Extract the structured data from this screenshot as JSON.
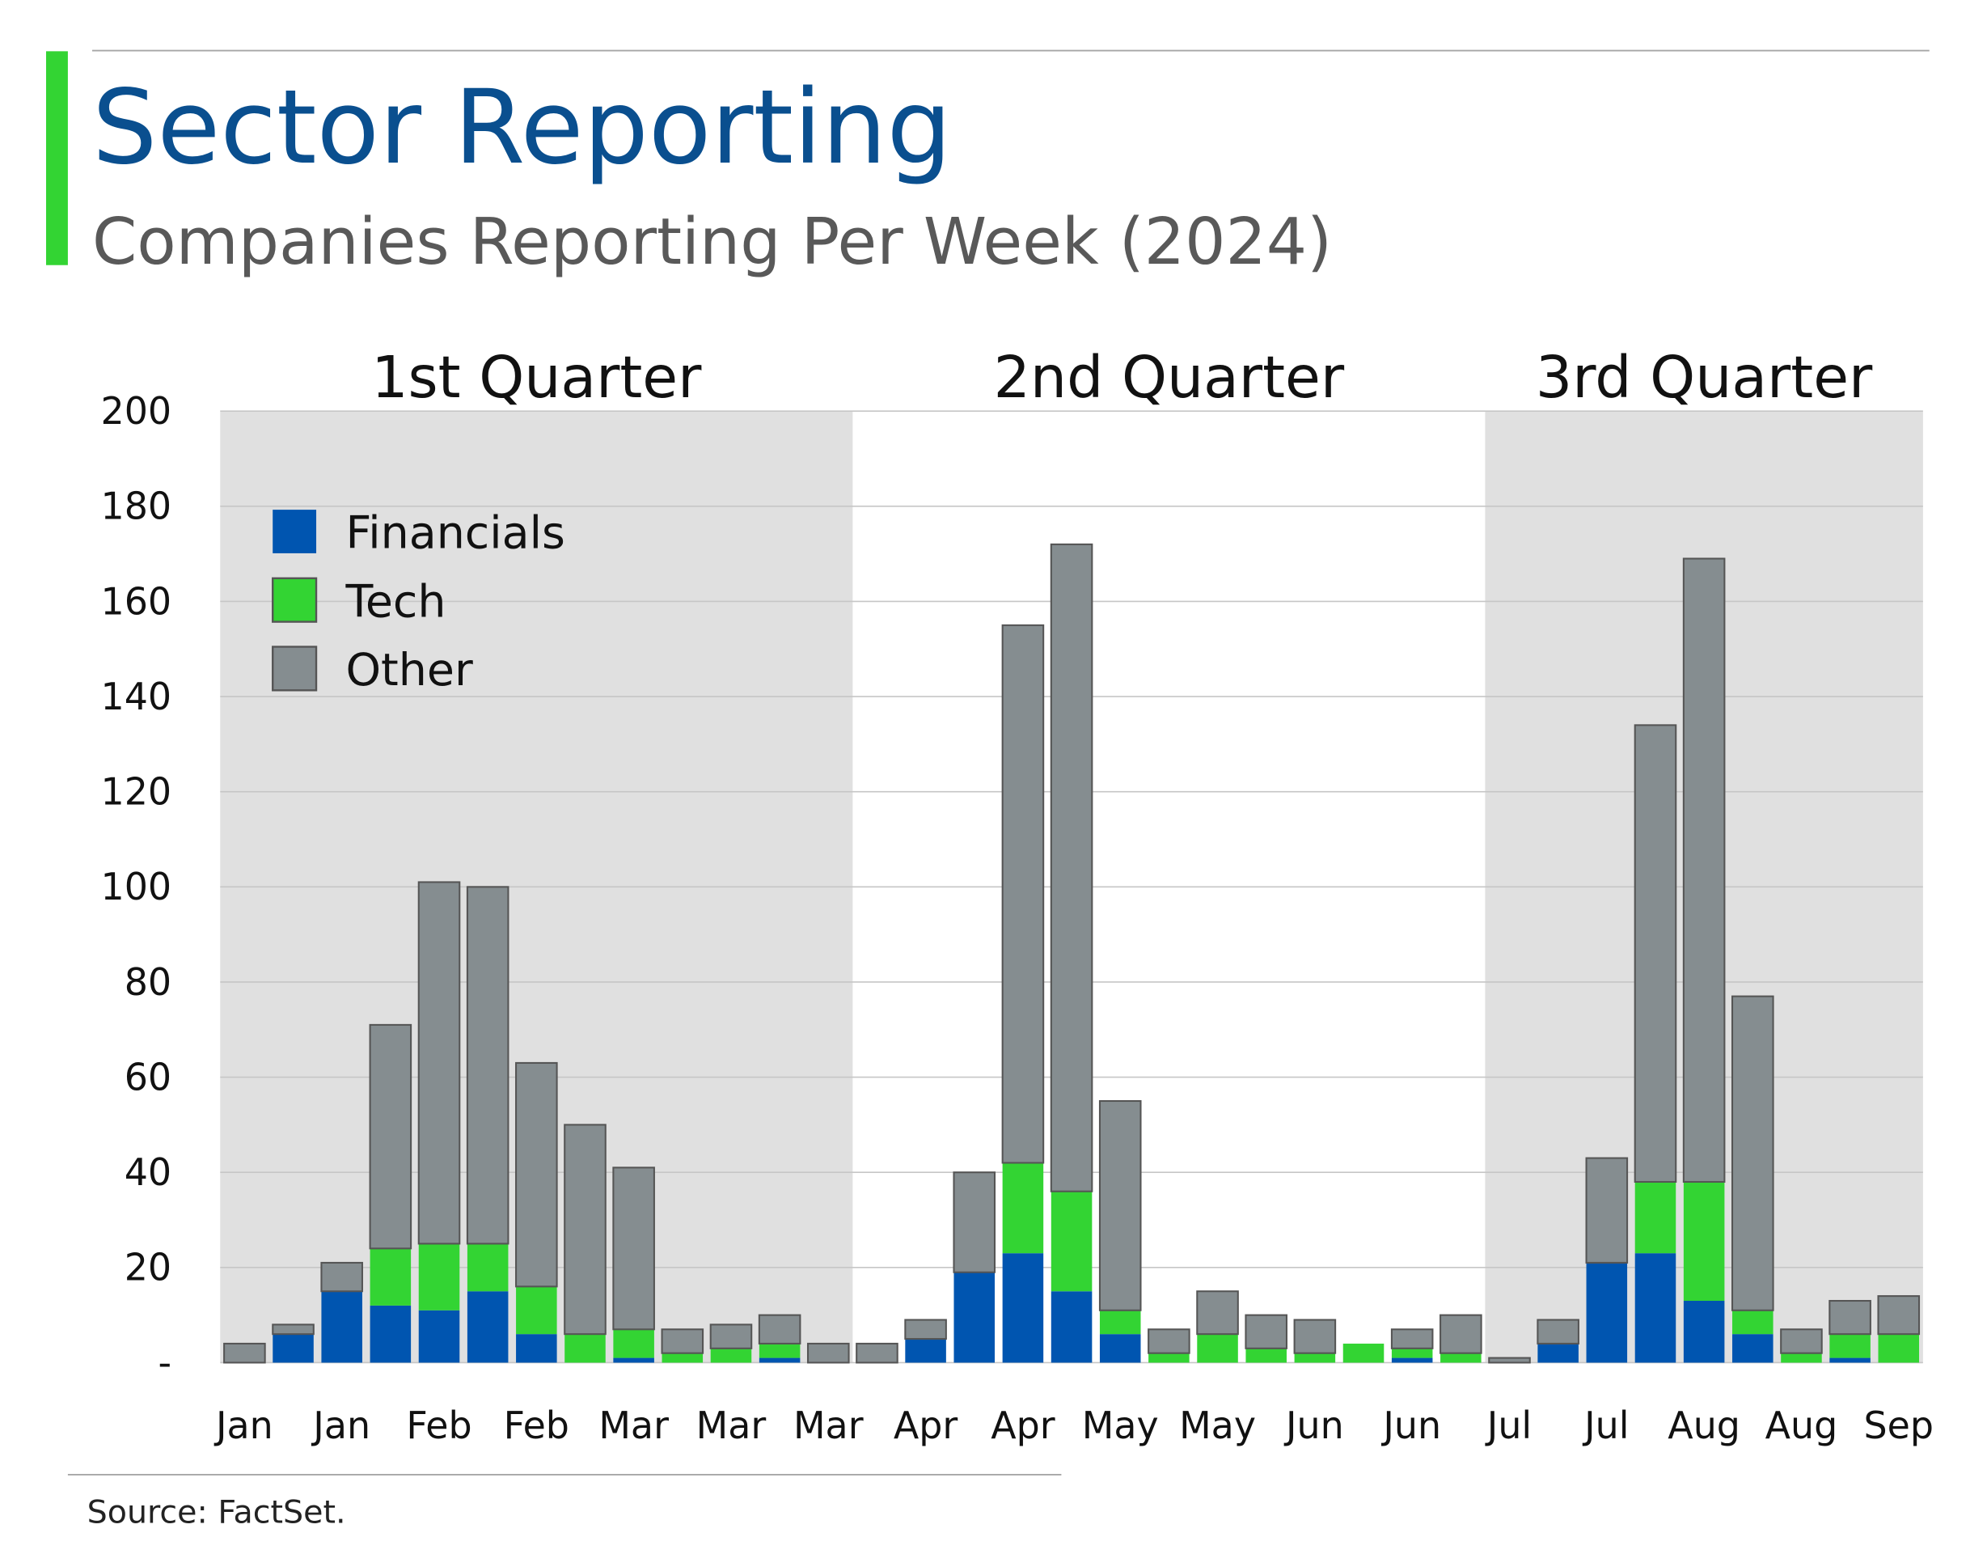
{
  "chart_data": {
    "type": "stacked_bar",
    "title": "Sector Reporting",
    "subtitle": "Companies Reporting Per Week (2024)",
    "source": "Source: FactSet.",
    "quarter_labels": [
      "1st Quarter",
      "2nd Quarter",
      "3rd Quarter"
    ],
    "categories": [
      "Jan",
      null,
      "Jan",
      null,
      "Feb",
      null,
      "Feb",
      null,
      "Mar",
      null,
      "Mar",
      null,
      "Mar",
      null,
      "Apr",
      null,
      "Apr",
      null,
      "May",
      null,
      "May",
      null,
      "Jun",
      null,
      "Jun",
      null,
      "Jul",
      null,
      "Jul",
      null,
      "Aug",
      null,
      "Aug",
      null,
      "Sep"
    ],
    "series": [
      {
        "name": "Financials",
        "color": "#0055b0",
        "values": [
          0,
          6,
          15,
          12,
          11,
          15,
          6,
          0,
          1,
          0,
          0,
          1,
          0,
          0,
          5,
          19,
          23,
          15,
          6,
          0,
          0,
          0,
          0,
          0,
          1,
          0,
          0,
          4,
          21,
          23,
          13,
          6,
          0,
          1,
          0
        ]
      },
      {
        "name": "Tech",
        "color": "#33d433",
        "values": [
          0,
          0,
          0,
          12,
          14,
          10,
          10,
          6,
          6,
          2,
          3,
          3,
          0,
          0,
          0,
          0,
          19,
          21,
          5,
          2,
          6,
          3,
          2,
          4,
          2,
          2,
          0,
          0,
          0,
          15,
          25,
          5,
          2,
          5,
          6
        ]
      },
      {
        "name": "Other",
        "color": "#858d90",
        "values": [
          4,
          2,
          6,
          47,
          76,
          75,
          47,
          44,
          34,
          5,
          5,
          6,
          4,
          4,
          4,
          21,
          113,
          136,
          44,
          5,
          9,
          7,
          7,
          0,
          4,
          8,
          1,
          5,
          22,
          96,
          131,
          66,
          5,
          7,
          8
        ]
      }
    ],
    "ylim": [
      0,
      200
    ],
    "yticks": [
      {
        "value": 0,
        "label": "-"
      },
      20,
      40,
      60,
      80,
      100,
      120,
      140,
      160,
      180,
      200
    ],
    "grid": true
  }
}
